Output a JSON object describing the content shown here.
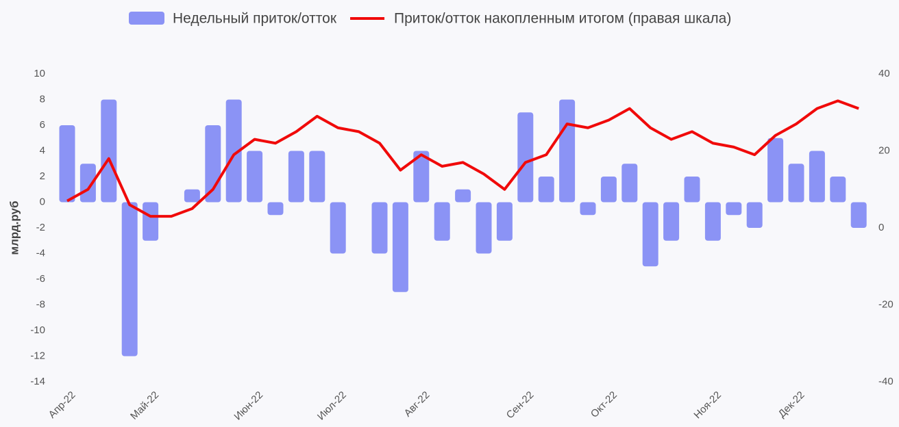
{
  "chart_data": {
    "type": "bar",
    "y_label": "млрд.руб",
    "categories": [
      "Апр-22",
      null,
      null,
      null,
      "Май-22",
      null,
      null,
      null,
      null,
      "Июн-22",
      null,
      null,
      null,
      "Июл-22",
      null,
      null,
      null,
      "Авг-22",
      null,
      null,
      null,
      null,
      "Сен-22",
      null,
      null,
      null,
      "Окт-22",
      null,
      null,
      null,
      null,
      "Ноя-22",
      null,
      null,
      null,
      "Дек-22",
      null,
      null,
      null
    ],
    "series": [
      {
        "name": "Недельный приток/отток",
        "type": "bar",
        "color": "#8b93f5",
        "values": [
          6,
          3,
          8,
          -12,
          -3,
          0,
          1,
          6,
          8,
          4,
          -1,
          4,
          4,
          -4,
          0,
          -4,
          -7,
          4,
          -3,
          1,
          -4,
          -3,
          7,
          2,
          8,
          -1,
          2,
          3,
          -5,
          -3,
          2,
          -3,
          -1,
          -2,
          5,
          3,
          4,
          2,
          -2
        ]
      },
      {
        "name": "Приток/отток накопленным итогом (правая шкала)",
        "type": "line",
        "axis": "y2",
        "color": "#f00a0a",
        "values": [
          7,
          10,
          18,
          6,
          3,
          3,
          5,
          10,
          19,
          23,
          22,
          25,
          29,
          26,
          25,
          22,
          15,
          19,
          16,
          17,
          14,
          10,
          17,
          19,
          27,
          26,
          28,
          31,
          26,
          23,
          25,
          22,
          21,
          19,
          24,
          27,
          31,
          33,
          31
        ]
      }
    ],
    "ylim": [
      -14,
      10
    ],
    "yticks": [
      -14,
      -12,
      -10,
      -8,
      -6,
      -4,
      -2,
      0,
      2,
      4,
      6,
      8,
      10
    ],
    "y2lim": [
      -40,
      40
    ],
    "y2ticks": [
      -40,
      -20,
      0,
      20,
      40
    ],
    "legend": "top",
    "grid": false
  }
}
